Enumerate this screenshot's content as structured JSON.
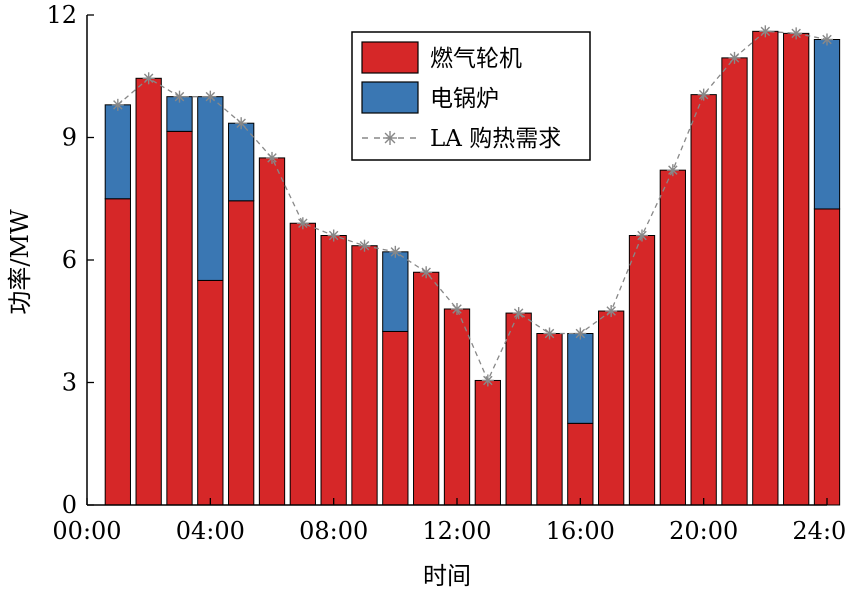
{
  "chart_data": {
    "type": "bar",
    "stacked": true,
    "xlabel": "时间",
    "ylabel": "功率/MW",
    "ylim": [
      0,
      12
    ],
    "yticks": [
      0,
      3,
      6,
      9,
      12
    ],
    "xlim": [
      0,
      24
    ],
    "xticks": [
      0,
      4,
      8,
      12,
      16,
      20,
      24
    ],
    "xtick_labels": [
      "00:00",
      "04:00",
      "08:00",
      "12:00",
      "16:00",
      "20:00",
      "24:00"
    ],
    "x": [
      1,
      2,
      3,
      4,
      5,
      6,
      7,
      8,
      9,
      10,
      11,
      12,
      13,
      14,
      15,
      16,
      17,
      18,
      19,
      20,
      21,
      22,
      23,
      24
    ],
    "series": [
      {
        "name": "燃气轮机",
        "color": "#d62728",
        "values": [
          7.5,
          10.45,
          9.15,
          5.5,
          7.45,
          8.5,
          6.9,
          6.6,
          6.35,
          4.25,
          5.7,
          4.8,
          3.05,
          4.7,
          4.2,
          2.0,
          4.75,
          6.6,
          8.2,
          10.05,
          10.95,
          11.6,
          11.55,
          7.25
        ]
      },
      {
        "name": "电锅炉",
        "color": "#3a77b3",
        "values": [
          2.3,
          0,
          0.85,
          4.5,
          1.9,
          0,
          0,
          0,
          0,
          1.95,
          0,
          0,
          0,
          0,
          0,
          2.2,
          0,
          0,
          0,
          0,
          0,
          0,
          0,
          4.15
        ]
      },
      {
        "name": "LA 购热需求",
        "type": "line",
        "color": "#888888",
        "values": [
          9.8,
          10.45,
          10.0,
          10.0,
          9.35,
          8.5,
          6.9,
          6.6,
          6.35,
          6.2,
          5.7,
          4.8,
          3.05,
          4.7,
          4.2,
          4.2,
          4.75,
          6.6,
          8.2,
          10.05,
          10.95,
          11.6,
          11.55,
          11.4
        ]
      }
    ],
    "legend": {
      "position": "top-center",
      "entries": [
        "燃气轮机",
        "电锅炉",
        "LA 购热需求"
      ]
    },
    "grid": false
  }
}
